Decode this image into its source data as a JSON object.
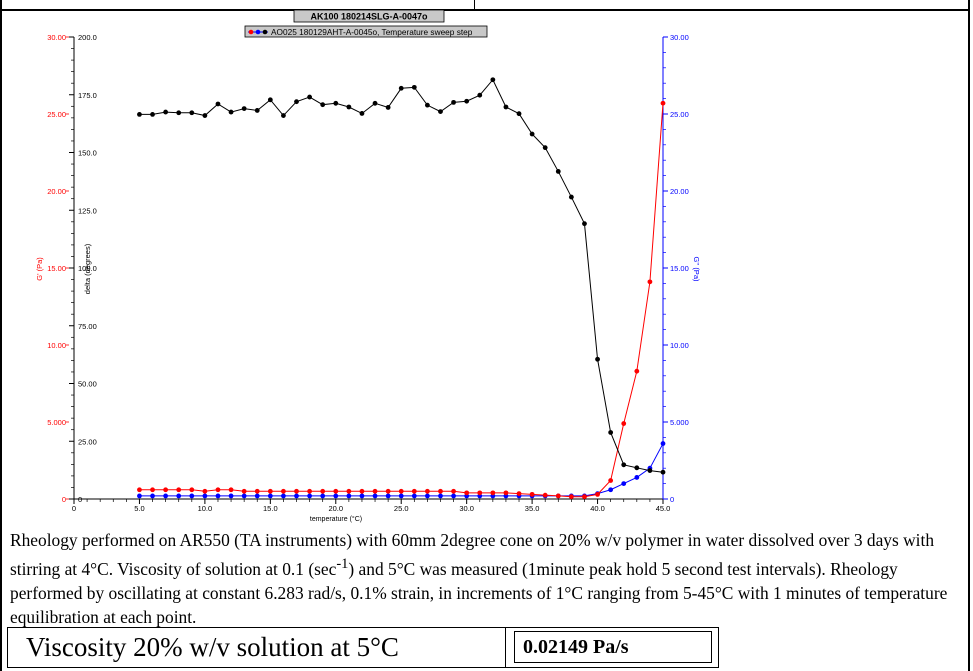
{
  "chart_data": {
    "type": "line",
    "title": "AK100 180214SLG-A-0047o",
    "legend_label": "AO025 180129AHT-A-0045o, Temperature sweep step",
    "xlabel": "temperature (°C)",
    "ylabel_left_red": "G' (Pa)",
    "ylabel_left_black": "delta (degrees)",
    "ylabel_right": "G'' (Pa)",
    "x_ticks": [
      "0",
      "5.0",
      "10.0",
      "15.0",
      "20.0",
      "25.0",
      "30.0",
      "35.0",
      "40.0",
      "45.0"
    ],
    "y_red_ticks": [
      "0",
      "5.000",
      "10.00",
      "15.00",
      "20.00",
      "25.00",
      "30.00"
    ],
    "y_delta_ticks": [
      "0",
      "25.00",
      "50.00",
      "75.00",
      "100.0",
      "125.0",
      "150.0",
      "175.0",
      "200.0"
    ],
    "y_blue_ticks": [
      "0",
      "5.000",
      "10.00",
      "15.00",
      "20.00",
      "25.00",
      "30.00"
    ],
    "xlim": [
      0,
      45
    ],
    "ylim_red": [
      0,
      30
    ],
    "ylim_delta": [
      0,
      200
    ],
    "ylim_blue": [
      0,
      30
    ],
    "x": [
      5,
      6,
      7,
      8,
      9,
      10,
      11,
      12,
      13,
      14,
      15,
      16,
      17,
      18,
      19,
      20,
      21,
      22,
      23,
      24,
      25,
      26,
      27,
      28,
      29,
      30,
      31,
      32,
      33,
      34,
      35,
      36,
      37,
      38,
      39,
      40,
      41,
      42,
      43,
      44,
      45
    ],
    "series": [
      {
        "name": "G'",
        "axis": "left-red",
        "color": "#ff0000",
        "values": [
          0.6,
          0.6,
          0.6,
          0.6,
          0.6,
          0.5,
          0.6,
          0.6,
          0.5,
          0.5,
          0.5,
          0.5,
          0.5,
          0.5,
          0.5,
          0.5,
          0.5,
          0.5,
          0.5,
          0.5,
          0.5,
          0.5,
          0.5,
          0.5,
          0.5,
          0.4,
          0.4,
          0.4,
          0.4,
          0.35,
          0.3,
          0.25,
          0.2,
          0.15,
          0.15,
          0.3,
          1.2,
          4.9,
          8.3,
          14.1,
          25.7
        ]
      },
      {
        "name": "delta",
        "axis": "left-black",
        "color": "#000000",
        "values": [
          166.5,
          166.5,
          167.5,
          167.2,
          167.2,
          166,
          171,
          167.5,
          169,
          168.2,
          172.8,
          166,
          172,
          174,
          170.7,
          171.3,
          169.7,
          166.9,
          171.3,
          169.5,
          177.8,
          178.2,
          170.5,
          167.7,
          171.7,
          172.2,
          174.8,
          181.5,
          169.7,
          166.8,
          158,
          152.1,
          141.8,
          130.7,
          119.2,
          60.5,
          28.8,
          14.8,
          13.5,
          12.3,
          11.6
        ]
      },
      {
        "name": "G''",
        "axis": "right",
        "color": "#0000ff",
        "values": [
          0.2,
          0.2,
          0.2,
          0.2,
          0.2,
          0.2,
          0.2,
          0.2,
          0.2,
          0.2,
          0.2,
          0.2,
          0.2,
          0.2,
          0.2,
          0.2,
          0.2,
          0.2,
          0.2,
          0.2,
          0.2,
          0.2,
          0.2,
          0.2,
          0.2,
          0.2,
          0.2,
          0.2,
          0.2,
          0.2,
          0.2,
          0.2,
          0.2,
          0.2,
          0.2,
          0.35,
          0.6,
          1.0,
          1.4,
          2.0,
          3.6
        ]
      }
    ]
  },
  "description": "Rheology  performed on AR550 (TA instruments) with 60mm 2degree cone on 20% w/v polymer in water dissolved over 3 days with stirring at 4°C. Viscosity of solution at 0.1 (sec-1) and 5°C was measured (1minute peak hold 5 second test intervals). Rheology performed by oscillating at constant 6.283 rad/s, 0.1% strain, in increments of 1°C ranging from 5-45°C with 1 minutes of temperature equilibration at each point.",
  "description_parts": {
    "p1": "Rheology  performed on AR550 (TA instruments) with 60mm 2degree cone on 20% w/v polymer in water dissolved over 3 days with stirring at 4°C. Viscosity of solution at 0.1 (sec",
    "sup": "-1",
    "p2": ") and 5°C was measured (1minute peak hold 5 second test intervals). Rheology performed by oscillating at constant 6.283 rad/s, 0.1% strain, in increments of 1°C ranging from 5-45°C with 1 minutes of temperature equilibration at each point."
  },
  "table": {
    "label": "Viscosity 20% w/v solution at 5°C",
    "value": "0.02149 Pa/s"
  }
}
